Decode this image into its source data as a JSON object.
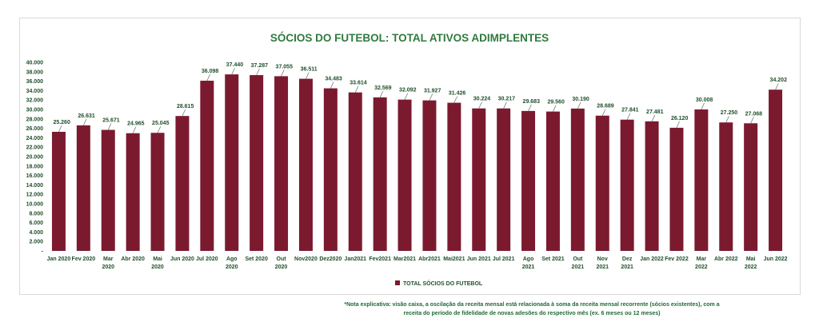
{
  "chart_data": {
    "type": "bar",
    "title": "SÓCIOS DO FUTEBOL: TOTAL ATIVOS ADIMPLENTES",
    "xlabel": "",
    "ylabel": "",
    "ylim": [
      0,
      40000
    ],
    "ytick_step": 2000,
    "ytick_labels": [
      "-",
      "2.000",
      "4.000",
      "6.000",
      "8.000",
      "10.000",
      "12.000",
      "14.000",
      "16.000",
      "18.000",
      "20.000",
      "22.000",
      "24.000",
      "26.000",
      "28.000",
      "30.000",
      "32.000",
      "34.000",
      "36.000",
      "38.000",
      "40.000"
    ],
    "grid": false,
    "legend_position": "bottom",
    "bar_color": "#7b1a2f",
    "categories": [
      [
        "Jan 2020"
      ],
      [
        "Fev 2020"
      ],
      [
        "Mar",
        "2020"
      ],
      [
        "Abr 2020"
      ],
      [
        "Mai",
        "2020"
      ],
      [
        "Jun 2020"
      ],
      [
        "Jul 2020"
      ],
      [
        "Ago",
        "2020"
      ],
      [
        "Set 2020"
      ],
      [
        "Out",
        "2020"
      ],
      [
        "Nov2020"
      ],
      [
        "Dez2020"
      ],
      [
        "Jan2021"
      ],
      [
        "Fev2021"
      ],
      [
        "Mar2021"
      ],
      [
        "Abr2021"
      ],
      [
        "Mai2021"
      ],
      [
        "Jun 2021"
      ],
      [
        "Jul 2021"
      ],
      [
        "Ago",
        "2021"
      ],
      [
        "Set 2021"
      ],
      [
        "Out",
        "2021"
      ],
      [
        "Nov",
        "2021"
      ],
      [
        "Dez",
        "2021"
      ],
      [
        "Jan 2022"
      ],
      [
        "Fev 2022"
      ],
      [
        "Mar",
        "2022"
      ],
      [
        "Abr 2022"
      ],
      [
        "Mai",
        "2022"
      ],
      [
        "Jun 2022"
      ]
    ],
    "series": [
      {
        "name": "TOTAL SÓCIOS DO FUTEBOL",
        "values": [
          25260,
          26631,
          25671,
          24965,
          25045,
          28615,
          36098,
          37440,
          37287,
          37055,
          36511,
          34483,
          33614,
          32569,
          32092,
          31927,
          31426,
          30224,
          30217,
          29683,
          29560,
          30190,
          28689,
          27841,
          27481,
          26120,
          30008,
          27250,
          27068,
          34202
        ],
        "labels": [
          "25.260",
          "26.631",
          "25.671",
          "24.965",
          "25.045",
          "28.615",
          "36.098",
          "37.440",
          "37.287",
          "37.055",
          "36.511",
          "34.483",
          "33.614",
          "32.569",
          "32.092",
          "31.927",
          "31.426",
          "30.224",
          "30.217",
          "29.683",
          "29.560",
          "30.190",
          "28.689",
          "27.841",
          "27.481",
          "26.120",
          "30.008",
          "27.250",
          "27.068",
          "34.202"
        ]
      }
    ]
  },
  "footnote": {
    "line1": "*Nota explicativa: visão caixa, a oscilação da receita mensal está relacionada à soma da receita mensal recorrente (sócios existentes), com a",
    "line2": "receita do período de fidelidade de novas adesões do respectivo mês (ex. 6 meses ou 12 meses)"
  }
}
